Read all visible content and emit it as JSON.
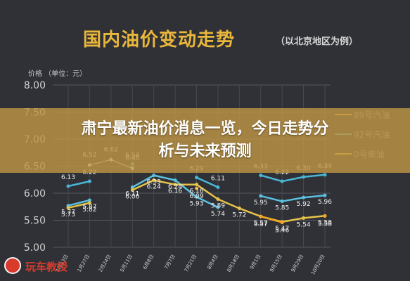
{
  "header": {
    "title": "国内油价变动走势",
    "subtitle": "（以北京地区为例）",
    "unit_label": "价格 （单位：元）"
  },
  "banner": {
    "line1": "肃宁最新油价消息一览，今日走势分",
    "line2": "析与未来预测"
  },
  "logo": {
    "text": "玩车教授"
  },
  "colors": {
    "background": "#2f3136",
    "title": "#e9b73b",
    "series_92": "#49b6d6",
    "series_95": "#e6c34a",
    "series_89": "#f5a623",
    "banner": "#be9646"
  },
  "chart_data": {
    "type": "line",
    "title": "国内油价变动走势",
    "subtitle": "（以北京地区为例）",
    "ylabel": "价格 （单位：元）",
    "ylim": [
      5.0,
      8.0
    ],
    "yticks": [
      "8.00",
      "7.50",
      "7.00",
      "6.50",
      "6.00",
      "5.50",
      "5.00"
    ],
    "categories": [
      "1月13日",
      "1月27日",
      "2月24日",
      "5月11日",
      "6月8日",
      "7月7日",
      "7月21日",
      "8月4日",
      "8月18日",
      "9月1日",
      "9月15日",
      "9月29日",
      "10月20日"
    ],
    "grid": true,
    "series": [
      {
        "name": "",
        "color": "#f2f2f2",
        "values": [
          null,
          6.52,
          6.62,
          6.46,
          null,
          null,
          null,
          null,
          null,
          null,
          null,
          null,
          null
        ]
      },
      {
        "name": "",
        "color": "#49b6d6",
        "values": [
          6.13,
          6.22,
          null,
          6.54,
          null,
          null,
          6.29,
          6.11,
          null,
          6.33,
          6.22,
          6.3,
          6.34
        ]
      },
      {
        "name": "",
        "color": "#5bc0de",
        "values": [
          5.77,
          5.87,
          null,
          6.11,
          6.33,
          6.24,
          5.93,
          5.74,
          null,
          5.95,
          5.85,
          5.92,
          5.96
        ]
      },
      {
        "name": "",
        "color": "#e6c34a",
        "values": [
          5.73,
          5.82,
          null,
          6.06,
          6.24,
          6.16,
          6.16,
          5.89,
          5.72,
          5.57,
          5.47,
          5.54,
          5.58
        ]
      },
      {
        "name": "",
        "color": "#f5a623",
        "values": [
          null,
          null,
          null,
          null,
          null,
          null,
          6.09,
          null,
          null,
          5.57,
          5.46,
          null,
          5.58
        ]
      }
    ],
    "data_labels": [
      [
        "",
        "6.52",
        "6.62",
        "6.46",
        "",
        "",
        "",
        "",
        "",
        "",
        "",
        "",
        ""
      ],
      [
        "6.13",
        "6.22",
        "",
        "6.54",
        "",
        "",
        "6.29",
        "6.11",
        "",
        "6.33",
        "6.22",
        "6.30",
        "6.34"
      ],
      [
        "5.77",
        "5.87",
        "",
        "6.11",
        "6.33",
        "6.24",
        "5.93",
        "5.74",
        "",
        "5.95",
        "5.85",
        "5.92",
        "5.96"
      ],
      [
        "5.73",
        "5.82",
        "",
        "6.06",
        "6.24",
        "6.16",
        "6.16",
        "5.89",
        "5.72",
        "5.57",
        "5.47",
        "5.54",
        "5.58"
      ],
      [
        "",
        "",
        "",
        "",
        "",
        "",
        "6.09",
        "",
        "",
        "5.57",
        "5.46",
        "",
        "5.58"
      ]
    ],
    "legend_entries": [
      "89号汽油",
      "92号汽油",
      "0号柴油"
    ],
    "legend_position": "top-right"
  }
}
